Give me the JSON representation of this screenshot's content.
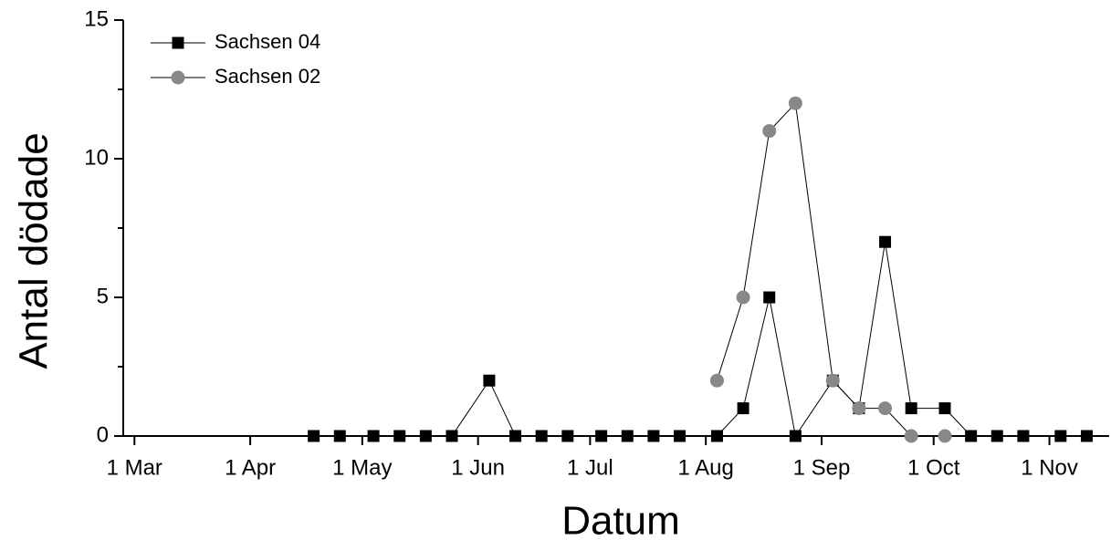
{
  "chart_data": {
    "type": "line",
    "xlabel": "Datum",
    "ylabel": "Antal dödade",
    "x": [
      "18 Apr",
      "25 Apr",
      "4 May",
      "11 May",
      "18 May",
      "25 May",
      "4 Jun",
      "11 Jun",
      "18 Jun",
      "25 Jun",
      "4 Jul",
      "11 Jul",
      "18 Jul",
      "25 Jul",
      "4 Aug",
      "11 Aug",
      "18 Aug",
      "25 Aug",
      "4 Sep",
      "11 Sep",
      "18 Sep",
      "25 Sep",
      "4 Oct",
      "11 Oct",
      "18 Oct",
      "25 Oct",
      "4 Nov",
      "11 Nov"
    ],
    "series": [
      {
        "name": "Sachsen 04",
        "color": "#000000",
        "marker": "square",
        "values": [
          0,
          0,
          0,
          0,
          0,
          0,
          2,
          0,
          0,
          0,
          0,
          0,
          0,
          0,
          0,
          1,
          5,
          0,
          2,
          1,
          7,
          1,
          1,
          0,
          0,
          0,
          0,
          0
        ]
      },
      {
        "name": "Sachsen 02",
        "color": "#888888",
        "marker": "circle",
        "values": [
          null,
          null,
          null,
          null,
          null,
          null,
          null,
          null,
          null,
          null,
          null,
          null,
          null,
          null,
          2,
          5,
          11,
          12,
          2,
          1,
          1,
          0,
          0,
          null,
          null,
          null,
          null,
          null
        ]
      }
    ],
    "xlim": [
      "26 Feb",
      "17 Nov"
    ],
    "xticks": [
      "1 Mar",
      "1 Apr",
      "1 May",
      "1 Jun",
      "1 Jul",
      "1 Aug",
      "1 Sep",
      "1 Oct",
      "1 Nov"
    ],
    "ylim": [
      0,
      15
    ],
    "yticks": [
      0,
      5,
      10,
      15
    ],
    "yminorticks": [
      2.5,
      7.5,
      12.5
    ],
    "legend": "upper left"
  }
}
